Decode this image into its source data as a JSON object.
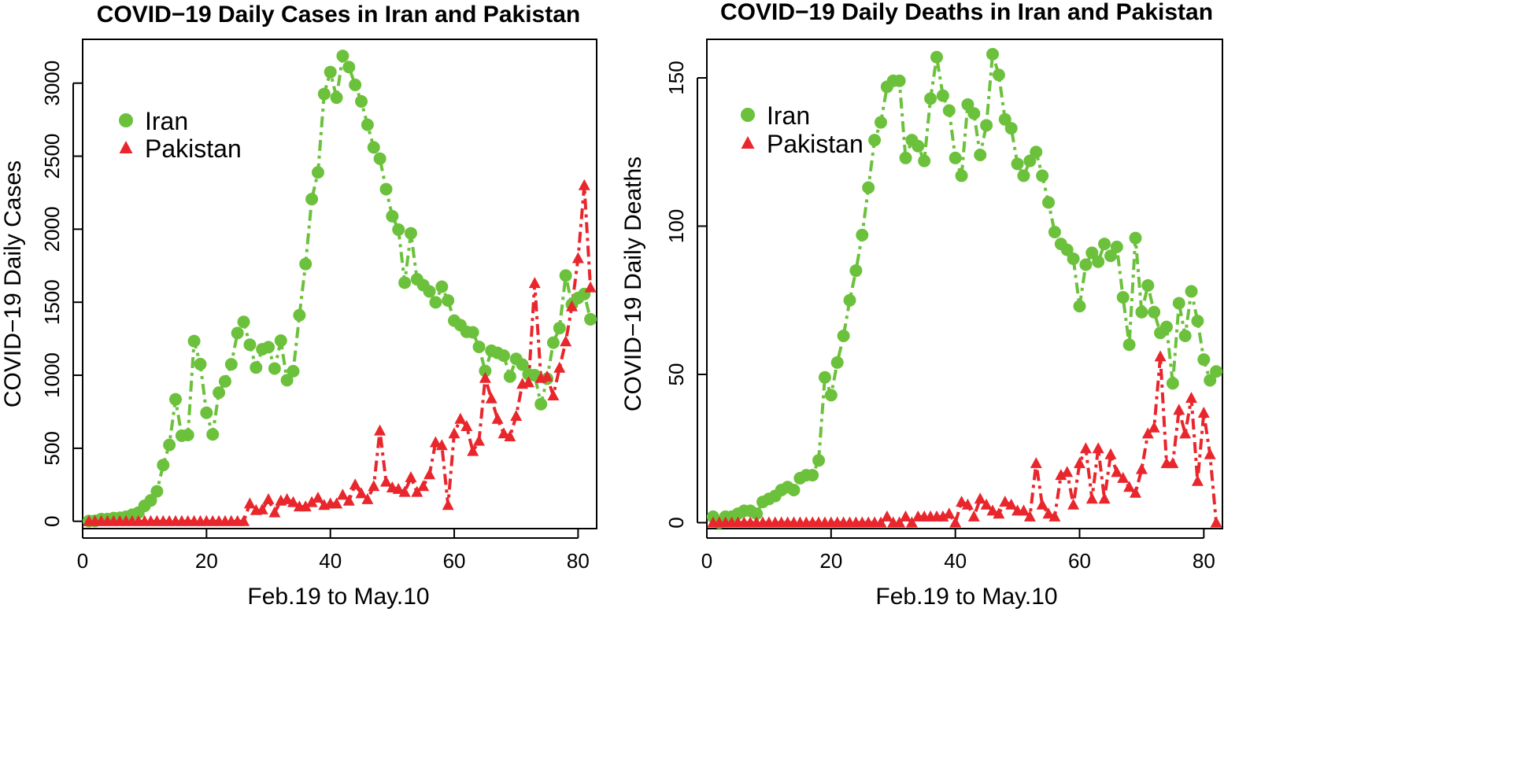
{
  "colors": {
    "iran": "#6CC13C",
    "pakistan": "#E8262C"
  },
  "chart_data": [
    {
      "type": "line",
      "title": "COVID−19 Daily Cases in Iran and Pakistan",
      "xlabel": "Feb.19 to May.10",
      "ylabel": "COVID−19 Daily Cases",
      "xlim": [
        0,
        83
      ],
      "ylim": [
        -50,
        3300
      ],
      "xticks": [
        0,
        20,
        40,
        60,
        80
      ],
      "xtick_labels": [
        "0",
        "20",
        "40",
        "60",
        "80"
      ],
      "yticks": [
        0,
        500,
        1000,
        1500,
        2000,
        2500,
        3000
      ],
      "ytick_labels": [
        "0",
        "500",
        "1000",
        "1500",
        "2000",
        "2500",
        "3000"
      ],
      "legend": [
        "Iran",
        "Pakistan"
      ],
      "legend_position": "top-left",
      "series": [
        {
          "name": "Iran",
          "marker": "circle",
          "x": [
            1,
            2,
            3,
            4,
            5,
            6,
            7,
            8,
            9,
            10,
            11,
            12,
            13,
            14,
            15,
            16,
            17,
            18,
            19,
            20,
            21,
            22,
            23,
            24,
            25,
            26,
            27,
            28,
            29,
            30,
            31,
            32,
            33,
            34,
            35,
            36,
            37,
            38,
            39,
            40,
            41,
            42,
            43,
            44,
            45,
            46,
            47,
            48,
            49,
            50,
            51,
            52,
            53,
            54,
            55,
            56,
            57,
            58,
            59,
            60,
            61,
            62,
            63,
            64,
            65,
            66,
            67,
            68,
            69,
            70,
            71,
            72,
            73,
            74,
            75,
            76,
            77,
            78,
            79,
            80,
            81,
            82
          ],
          "values": [
            2,
            3,
            15,
            15,
            22,
            24,
            31,
            45,
            59,
            106,
            143,
            205,
            385,
            523,
            835,
            586,
            591,
            1234,
            1076,
            743,
            595,
            881,
            958,
            1075,
            1289,
            1365,
            1209,
            1053,
            1178,
            1192,
            1046,
            1237,
            966,
            1028,
            1411,
            1762,
            2206,
            2389,
            2926,
            3076,
            2901,
            3186,
            3110,
            2988,
            2875,
            2715,
            2560,
            2483,
            2274,
            2089,
            1997,
            1634,
            1972,
            1657,
            1617,
            1574,
            1499,
            1606,
            1512,
            1374,
            1343,
            1297,
            1294,
            1194,
            1030,
            1168,
            1153,
            1134,
            991,
            1112,
            1073,
            1006,
            1000,
            802,
            976,
            1223,
            1323,
            1683,
            1485,
            1529,
            1556,
            1383
          ]
        },
        {
          "name": "Pakistan",
          "marker": "triangle",
          "x": [
            1,
            2,
            3,
            4,
            5,
            6,
            7,
            8,
            9,
            10,
            11,
            12,
            13,
            14,
            15,
            16,
            17,
            18,
            19,
            20,
            21,
            22,
            23,
            24,
            25,
            26,
            27,
            28,
            29,
            30,
            31,
            32,
            33,
            34,
            35,
            36,
            37,
            38,
            39,
            40,
            41,
            42,
            43,
            44,
            45,
            46,
            47,
            48,
            49,
            50,
            51,
            52,
            53,
            54,
            55,
            56,
            57,
            58,
            59,
            60,
            61,
            62,
            63,
            64,
            65,
            66,
            67,
            68,
            69,
            70,
            71,
            72,
            73,
            74,
            75,
            76,
            77,
            78,
            79,
            80,
            81,
            82
          ],
          "values": [
            0,
            0,
            0,
            0,
            0,
            0,
            0,
            0,
            0,
            0,
            0,
            0,
            0,
            0,
            0,
            0,
            0,
            0,
            0,
            0,
            0,
            0,
            0,
            0,
            0,
            0,
            120,
            75,
            80,
            150,
            60,
            140,
            150,
            130,
            100,
            100,
            130,
            160,
            110,
            120,
            120,
            180,
            140,
            250,
            190,
            150,
            240,
            620,
            270,
            230,
            220,
            200,
            300,
            200,
            240,
            320,
            540,
            520,
            110,
            600,
            700,
            650,
            480,
            550,
            980,
            840,
            700,
            600,
            580,
            720,
            940,
            950,
            1630,
            980,
            990,
            860,
            1050,
            1230,
            1470,
            1800,
            2300,
            1600
          ]
        }
      ]
    },
    {
      "type": "line",
      "title": "COVID−19 Daily Deaths in Iran and Pakistan",
      "xlabel": "Feb.19 to May.10",
      "ylabel": "COVID−19 Daily Deaths",
      "xlim": [
        0,
        83
      ],
      "ylim": [
        -2,
        163
      ],
      "xticks": [
        0,
        20,
        40,
        60,
        80
      ],
      "xtick_labels": [
        "0",
        "20",
        "40",
        "60",
        "80"
      ],
      "yticks": [
        0,
        50,
        100,
        150
      ],
      "ytick_labels": [
        "0",
        "50",
        "100",
        "150"
      ],
      "legend": [
        "Iran",
        "Pakistan"
      ],
      "legend_position": "top-left",
      "series": [
        {
          "name": "Iran",
          "marker": "circle",
          "x": [
            1,
            2,
            3,
            4,
            5,
            6,
            7,
            8,
            9,
            10,
            11,
            12,
            13,
            14,
            15,
            16,
            17,
            18,
            19,
            20,
            21,
            22,
            23,
            24,
            25,
            26,
            27,
            28,
            29,
            30,
            31,
            32,
            33,
            34,
            35,
            36,
            37,
            38,
            39,
            40,
            41,
            42,
            43,
            44,
            45,
            46,
            47,
            48,
            49,
            50,
            51,
            52,
            53,
            54,
            55,
            56,
            57,
            58,
            59,
            60,
            61,
            62,
            63,
            64,
            65,
            66,
            67,
            68,
            69,
            70,
            71,
            72,
            73,
            74,
            75,
            76,
            77,
            78,
            79,
            80,
            81,
            82
          ],
          "values": [
            2,
            0,
            2,
            2,
            3,
            4,
            4,
            3,
            7,
            8,
            9,
            11,
            12,
            11,
            15,
            16,
            16,
            21,
            49,
            43,
            54,
            63,
            75,
            85,
            97,
            113,
            129,
            135,
            147,
            149,
            149,
            123,
            129,
            127,
            122,
            143,
            157,
            144,
            139,
            123,
            117,
            141,
            138,
            124,
            134,
            158,
            151,
            136,
            133,
            121,
            117,
            122,
            125,
            117,
            108,
            98,
            94,
            92,
            89,
            73,
            87,
            91,
            88,
            94,
            90,
            93,
            76,
            60,
            96,
            71,
            80,
            71,
            64,
            66,
            47,
            74,
            63,
            78,
            68,
            55,
            48,
            51
          ]
        },
        {
          "name": "Pakistan",
          "marker": "triangle",
          "x": [
            1,
            2,
            3,
            4,
            5,
            6,
            7,
            8,
            9,
            10,
            11,
            12,
            13,
            14,
            15,
            16,
            17,
            18,
            19,
            20,
            21,
            22,
            23,
            24,
            25,
            26,
            27,
            28,
            29,
            30,
            31,
            32,
            33,
            34,
            35,
            36,
            37,
            38,
            39,
            40,
            41,
            42,
            43,
            44,
            45,
            46,
            47,
            48,
            49,
            50,
            51,
            52,
            53,
            54,
            55,
            56,
            57,
            58,
            59,
            60,
            61,
            62,
            63,
            64,
            65,
            66,
            67,
            68,
            69,
            70,
            71,
            72,
            73,
            74,
            75,
            76,
            77,
            78,
            79,
            80,
            81,
            82
          ],
          "values": [
            0,
            0,
            0,
            0,
            0,
            0,
            0,
            0,
            0,
            0,
            0,
            0,
            0,
            0,
            0,
            0,
            0,
            0,
            0,
            0,
            0,
            0,
            0,
            0,
            0,
            0,
            0,
            0,
            2,
            0,
            0,
            2,
            0,
            2,
            2,
            2,
            2,
            2,
            3,
            0,
            7,
            6,
            2,
            8,
            6,
            4,
            3,
            7,
            6,
            4,
            4,
            2,
            20,
            6,
            3,
            2,
            16,
            17,
            6,
            20,
            25,
            8,
            25,
            8,
            23,
            17,
            15,
            12,
            10,
            18,
            30,
            32,
            56,
            20,
            20,
            38,
            30,
            42,
            14,
            37,
            23,
            0
          ]
        }
      ]
    }
  ]
}
